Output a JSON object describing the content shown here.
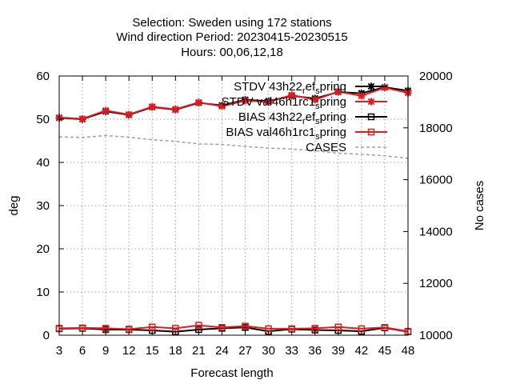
{
  "chart_data": {
    "type": "line",
    "title_lines": [
      "Selection: Sweden using   172 stations",
      "Wind direction   Period: 20230415-20230515",
      "Hours:  00,06,12,18"
    ],
    "xlabel": "Forecast length",
    "ylabel": "deg",
    "y2label": "No cases",
    "x": [
      3,
      6,
      9,
      12,
      15,
      18,
      21,
      24,
      27,
      30,
      33,
      36,
      39,
      42,
      45,
      48
    ],
    "xlim": [
      3,
      48
    ],
    "ylim": [
      0,
      60
    ],
    "y2lim": [
      10000,
      20000
    ],
    "yticks": [
      0,
      10,
      20,
      30,
      40,
      50,
      60
    ],
    "y2ticks": [
      10000,
      12000,
      14000,
      16000,
      18000,
      20000
    ],
    "grid": true,
    "legend_position": "top-right",
    "series": [
      {
        "name": "STDV 43h22_ref_spring",
        "legend_main": "STDV 43h22",
        "legend_sub1": "r",
        "legend_mid": "ef",
        "legend_sub2": "s",
        "legend_tail": "pring",
        "color": "#000000",
        "marker": "star",
        "dash": false,
        "axis": "y",
        "values": [
          50.3,
          50.0,
          51.8,
          51.0,
          52.8,
          52.2,
          53.8,
          53.2,
          54.5,
          54.2,
          55.4,
          54.8,
          56.3,
          56.0,
          57.4,
          56.6
        ]
      },
      {
        "name": "STDV val46h1rc1_spring",
        "legend_main": "STDV val46h1rc1",
        "legend_sub1": "",
        "legend_mid": "",
        "legend_sub2": "s",
        "legend_tail": "pring",
        "color": "#e41a1c",
        "marker": "star",
        "dash": false,
        "axis": "y",
        "values": [
          50.4,
          50.1,
          52.0,
          51.1,
          52.9,
          52.3,
          53.9,
          53.0,
          54.3,
          54.0,
          55.6,
          54.5,
          56.4,
          55.4,
          57.3,
          56.1
        ]
      },
      {
        "name": "BIAS 43h22_ref_spring",
        "legend_main": "BIAS 43h22",
        "legend_sub1": "r",
        "legend_mid": "ef",
        "legend_sub2": "s",
        "legend_tail": "pring",
        "color": "#000000",
        "marker": "square",
        "dash": false,
        "axis": "y",
        "values": [
          1.5,
          1.6,
          1.3,
          1.3,
          1.1,
          0.8,
          1.3,
          1.6,
          1.8,
          0.9,
          1.4,
          1.2,
          1.1,
          0.9,
          1.7,
          0.8
        ]
      },
      {
        "name": "BIAS val46h1rc1_spring",
        "legend_main": "BIAS val46h1rc1",
        "legend_sub1": "",
        "legend_mid": "",
        "legend_sub2": "s",
        "legend_tail": "pring",
        "color": "#e41a1c",
        "marker": "square",
        "dash": false,
        "axis": "y",
        "values": [
          1.6,
          1.7,
          1.6,
          1.4,
          1.9,
          1.6,
          2.3,
          1.8,
          2.1,
          1.5,
          1.5,
          1.6,
          1.9,
          1.5,
          1.8,
          0.9
        ]
      },
      {
        "name": "CASES",
        "legend_main": "CASES",
        "legend_sub1": "",
        "legend_mid": "",
        "legend_sub2": "",
        "legend_tail": "",
        "color": "#a0a0a0",
        "marker": "none",
        "dash": true,
        "axis": "y2",
        "values": [
          17650,
          17630,
          17700,
          17640,
          17540,
          17480,
          17380,
          17360,
          17280,
          17220,
          17180,
          17120,
          17020,
          16980,
          16920,
          16820
        ]
      }
    ]
  }
}
